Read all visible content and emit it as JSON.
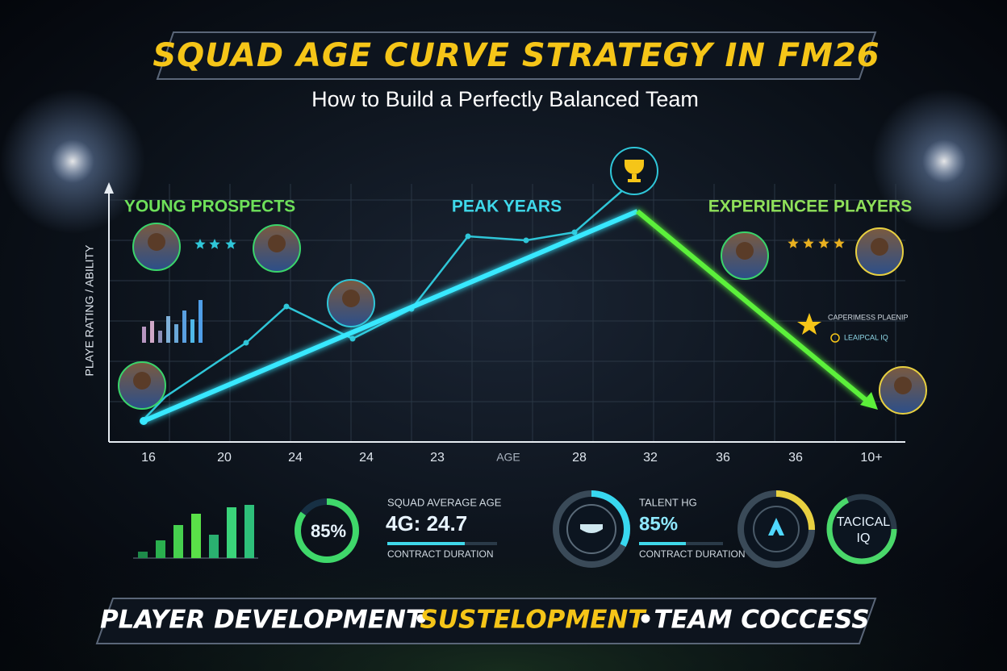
{
  "header": {
    "title": "SQUAD AGE CURVE STRATEGY IN FM26",
    "subtitle": "How to Build a Perfectly Balanced Team"
  },
  "chart": {
    "y_axis_label": "PLAYE RATING / ABILITY",
    "zones": [
      "YOUNG PROSPECTS",
      "PEAK YEARS",
      "EXPERIENCEE PLAYERS"
    ],
    "x_labels": [
      "16",
      "20",
      "24",
      "24",
      "23",
      "AGE",
      "28",
      "32",
      "36",
      "36",
      "10+"
    ],
    "legend": [
      "CAPERIMESS PLAENIP",
      "LEAIPCAL IQ"
    ]
  },
  "stats": {
    "ring_1": "85%",
    "squad_age": {
      "label": "SQUAD AVERAGE AGE",
      "value": "4G: 24.7",
      "caption": "CONTRACT DURATION"
    },
    "talent": {
      "label": "TALENT HG",
      "value": "85%",
      "caption": "CONTRACT DURATION"
    },
    "tactical": [
      "TACICAL",
      "IQ"
    ]
  },
  "footer": {
    "items": [
      "PLAYER DEVELOPMENT",
      "•",
      "SUSTELOPMENT",
      "•",
      "TEAM COCCESS"
    ]
  }
}
